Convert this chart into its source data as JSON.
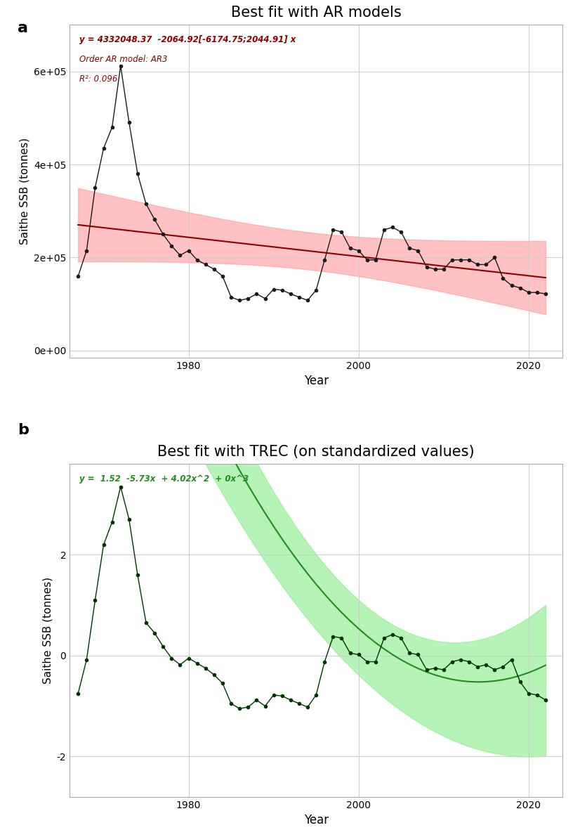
{
  "years": [
    1967,
    1968,
    1969,
    1970,
    1971,
    1972,
    1973,
    1974,
    1975,
    1976,
    1977,
    1978,
    1979,
    1980,
    1981,
    1982,
    1983,
    1984,
    1985,
    1986,
    1987,
    1988,
    1989,
    1990,
    1991,
    1992,
    1993,
    1994,
    1995,
    1996,
    1997,
    1998,
    1999,
    2000,
    2001,
    2002,
    2003,
    2004,
    2005,
    2006,
    2007,
    2008,
    2009,
    2010,
    2011,
    2012,
    2013,
    2014,
    2015,
    2016,
    2017,
    2018,
    2019,
    2020,
    2021,
    2022
  ],
  "ssb": [
    160000,
    215000,
    350000,
    435000,
    480000,
    612000,
    490000,
    380000,
    315000,
    282000,
    250000,
    225000,
    205000,
    215000,
    195000,
    185000,
    175000,
    160000,
    115000,
    108000,
    112000,
    122000,
    112000,
    132000,
    130000,
    122000,
    115000,
    108000,
    130000,
    195000,
    260000,
    255000,
    220000,
    215000,
    195000,
    195000,
    260000,
    265000,
    255000,
    220000,
    215000,
    180000,
    175000,
    175000,
    195000,
    195000,
    195000,
    185000,
    185000,
    200000,
    155000,
    140000,
    135000,
    125000,
    125000,
    122000
  ],
  "ssb_std": [
    -0.75,
    -0.08,
    1.1,
    2.2,
    2.65,
    3.35,
    2.7,
    1.6,
    0.65,
    0.45,
    0.18,
    -0.05,
    -0.18,
    -0.05,
    -0.15,
    -0.25,
    -0.38,
    -0.55,
    -0.95,
    -1.05,
    -1.02,
    -0.88,
    -1.0,
    -0.78,
    -0.8,
    -0.88,
    -0.95,
    -1.02,
    -0.78,
    -0.12,
    0.38,
    0.35,
    0.05,
    0.02,
    -0.12,
    -0.12,
    0.35,
    0.42,
    0.35,
    0.05,
    0.02,
    -0.28,
    -0.25,
    -0.28,
    -0.12,
    -0.08,
    -0.12,
    -0.22,
    -0.18,
    -0.28,
    -0.22,
    -0.08,
    -0.52,
    -0.75,
    -0.78,
    -0.88
  ],
  "ar_intercept": 4332048.37,
  "ar_slope": -2064.92,
  "ar_ci_low": -6174.75,
  "ar_ci_high": 2044.91,
  "ar_order": "AR3",
  "ar_r2": "0.096",
  "panel_a_title": "Best fit with AR models",
  "panel_b_title": "Best fit with TREC (on standardized values)",
  "ylabel": "Saithe SSB (tonnes)",
  "xlabel": "Year",
  "ar_line_color": "#8B0000",
  "ar_shade_color": "#FF9999",
  "trec_line_color": "#228B22",
  "trec_shade_color": "#90EE90",
  "data_line_color": "#1a1a1a",
  "data_line_color_b": "#003300",
  "background_color": "#ffffff",
  "grid_color": "#cccccc"
}
